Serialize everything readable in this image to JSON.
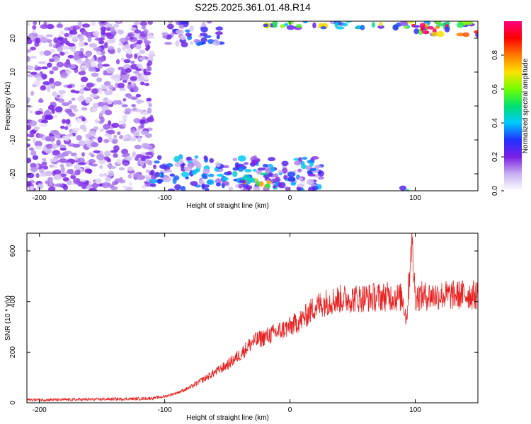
{
  "figure": {
    "title": "S225.2025.361.01.48.R14"
  },
  "chart_data": [
    {
      "type": "heatmap",
      "name": "spectrogram",
      "xlabel": "Height of straight line (km)",
      "ylabel": "Frequency (Hz)",
      "xlim": [
        -210,
        150
      ],
      "ylim": [
        -25,
        25
      ],
      "x_ticks": [
        -200,
        -100,
        0,
        100
      ],
      "y_ticks": [
        -20,
        -10,
        0,
        10,
        20
      ],
      "grid": false,
      "colorbar": {
        "label": "Normalized spectral amplitude",
        "range": [
          0,
          1
        ],
        "ticks": [
          0.0,
          0.2,
          0.4,
          0.6,
          0.8
        ],
        "colors": [
          "#ffffff",
          "#c8b0f0",
          "#7a1fe6",
          "#2030ff",
          "#00c8ff",
          "#00e070",
          "#70ff00",
          "#ffe000",
          "#ff7a00",
          "#ff0000",
          "#ff0080"
        ]
      },
      "regions": [
        {
          "description_free": true,
          "x": [
            -210,
            -110
          ],
          "y": [
            -25,
            25
          ],
          "level": 0.15
        },
        {
          "x": [
            -100,
            -55
          ],
          "y": [
            18,
            25
          ],
          "level": 0.25
        },
        {
          "x": [
            -110,
            25
          ],
          "y": [
            -25,
            -15
          ],
          "level": 0.3
        },
        {
          "x": [
            -40,
            -15
          ],
          "y": [
            -24,
            -20
          ],
          "level": 0.55
        },
        {
          "x": [
            85,
            95
          ],
          "y": [
            -25,
            -24
          ],
          "level": 0.5
        },
        {
          "x": [
            -20,
            150
          ],
          "y": [
            23,
            25
          ],
          "level": 0.5
        },
        {
          "x": [
            95,
            150
          ],
          "y": [
            21,
            24
          ],
          "level": 0.85
        }
      ]
    },
    {
      "type": "line",
      "name": "snr",
      "xlabel": "Height of straight line (km)",
      "ylabel": "SNR (10 * v/v)",
      "xlim": [
        -210,
        150
      ],
      "ylim": [
        0,
        670
      ],
      "x_ticks": [
        -200,
        -100,
        0,
        100
      ],
      "y_ticks": [
        0,
        200,
        400,
        600
      ],
      "grid": false,
      "color": "#e8201f",
      "x": [
        -210,
        -180,
        -150,
        -120,
        -110,
        -100,
        -90,
        -80,
        -70,
        -60,
        -50,
        -40,
        -30,
        -20,
        -10,
        0,
        10,
        20,
        30,
        40,
        50,
        60,
        70,
        80,
        90,
        93,
        95,
        97,
        100,
        110,
        120,
        130,
        140,
        150
      ],
      "y": [
        12,
        12,
        14,
        16,
        18,
        25,
        40,
        60,
        90,
        120,
        150,
        190,
        240,
        260,
        280,
        300,
        330,
        380,
        400,
        410,
        412,
        415,
        418,
        420,
        415,
        330,
        470,
        650,
        420,
        422,
        425,
        425,
        428,
        425
      ]
    }
  ]
}
